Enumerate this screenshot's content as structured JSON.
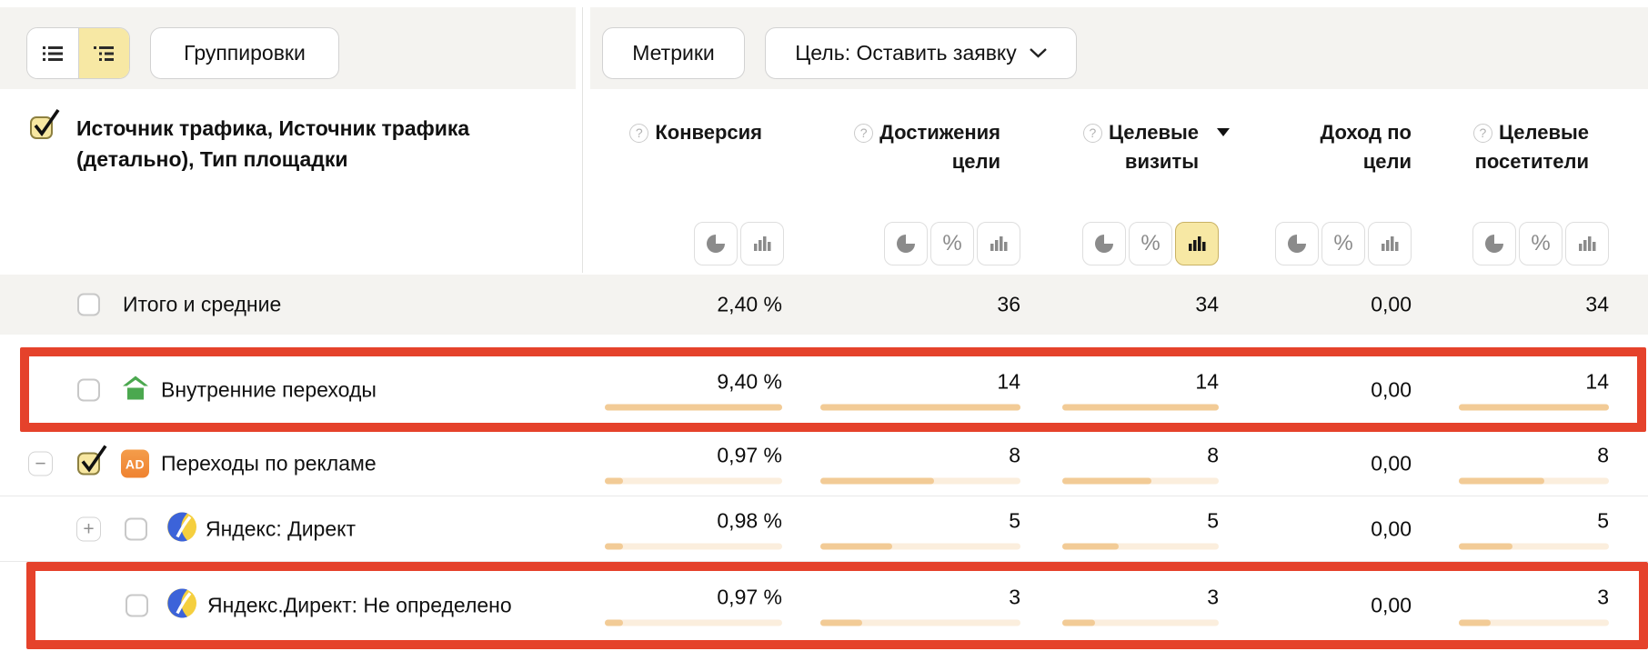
{
  "colors": {
    "accent_red": "#e5422b",
    "active_yellow": "#f7e8a4",
    "bar_fill": "#f2cb96",
    "bar_track": "#fbeedd",
    "row_alt_bg": "#f4f3f0",
    "house_green": "#4ba84f",
    "ad_orange": "#ef8632",
    "yandex_blue": "#3c63d9",
    "yandex_yellow": "#f5cf3f"
  },
  "toolbar": {
    "view_modes": {
      "active": "tree"
    },
    "groupings_label": "Группировки",
    "metrics_label": "Метрики",
    "goal_label": "Цель: Оставить заявку"
  },
  "table": {
    "dimension_header": "Источник трафика, Источник трафика (детально), Тип площадки",
    "columns": [
      {
        "label": "Конверсия",
        "help": true,
        "toggles": [
          "pie",
          "bar"
        ]
      },
      {
        "label": "Достижения цели",
        "help": true,
        "toggles": [
          "pie",
          "percent",
          "bar"
        ]
      },
      {
        "label": "Целевые визиты",
        "help": true,
        "sorted": "desc",
        "toggles": [
          "pie",
          "percent",
          "bar"
        ],
        "active_toggle": "bar"
      },
      {
        "label": "Доход по цели",
        "help": false,
        "toggles": [
          "pie",
          "percent",
          "bar"
        ]
      },
      {
        "label": "Целевые посетители",
        "help": true,
        "toggles": [
          "pie",
          "percent",
          "bar"
        ]
      }
    ],
    "rows": [
      {
        "label": "Итого и средние",
        "checked": false,
        "values": [
          "2,40 %",
          "36",
          "34",
          "0,00",
          "34"
        ]
      },
      {
        "label": "Внутренние переходы",
        "icon": "internal-transitions",
        "checked": false,
        "highlighted": true,
        "values": [
          "9,40 %",
          "14",
          "14",
          "0,00",
          "14"
        ],
        "bars": [
          "100%",
          "100%",
          "100%",
          "",
          "100%"
        ]
      },
      {
        "label": "Переходы по рекламе",
        "icon": "ad-transitions",
        "expander": "collapse",
        "checked": true,
        "values": [
          "0,97 %",
          "8",
          "8",
          "0,00",
          "8"
        ],
        "bars": [
          "10%",
          "57%",
          "57%",
          "",
          "57%"
        ]
      },
      {
        "label": "Яндекс: Директ",
        "icon": "yandex-direct",
        "expander": "expand",
        "checked": false,
        "values": [
          "0,98 %",
          "5",
          "5",
          "0,00",
          "5"
        ],
        "bars": [
          "10%",
          "36%",
          "36%",
          "",
          "36%"
        ]
      },
      {
        "label": "Яндекс.Директ: Не определено",
        "icon": "yandex-direct",
        "checked": false,
        "highlighted": true,
        "values": [
          "0,97 %",
          "3",
          "3",
          "0,00",
          "3"
        ],
        "bars": [
          "10%",
          "21%",
          "21%",
          "",
          "21%"
        ]
      }
    ]
  }
}
